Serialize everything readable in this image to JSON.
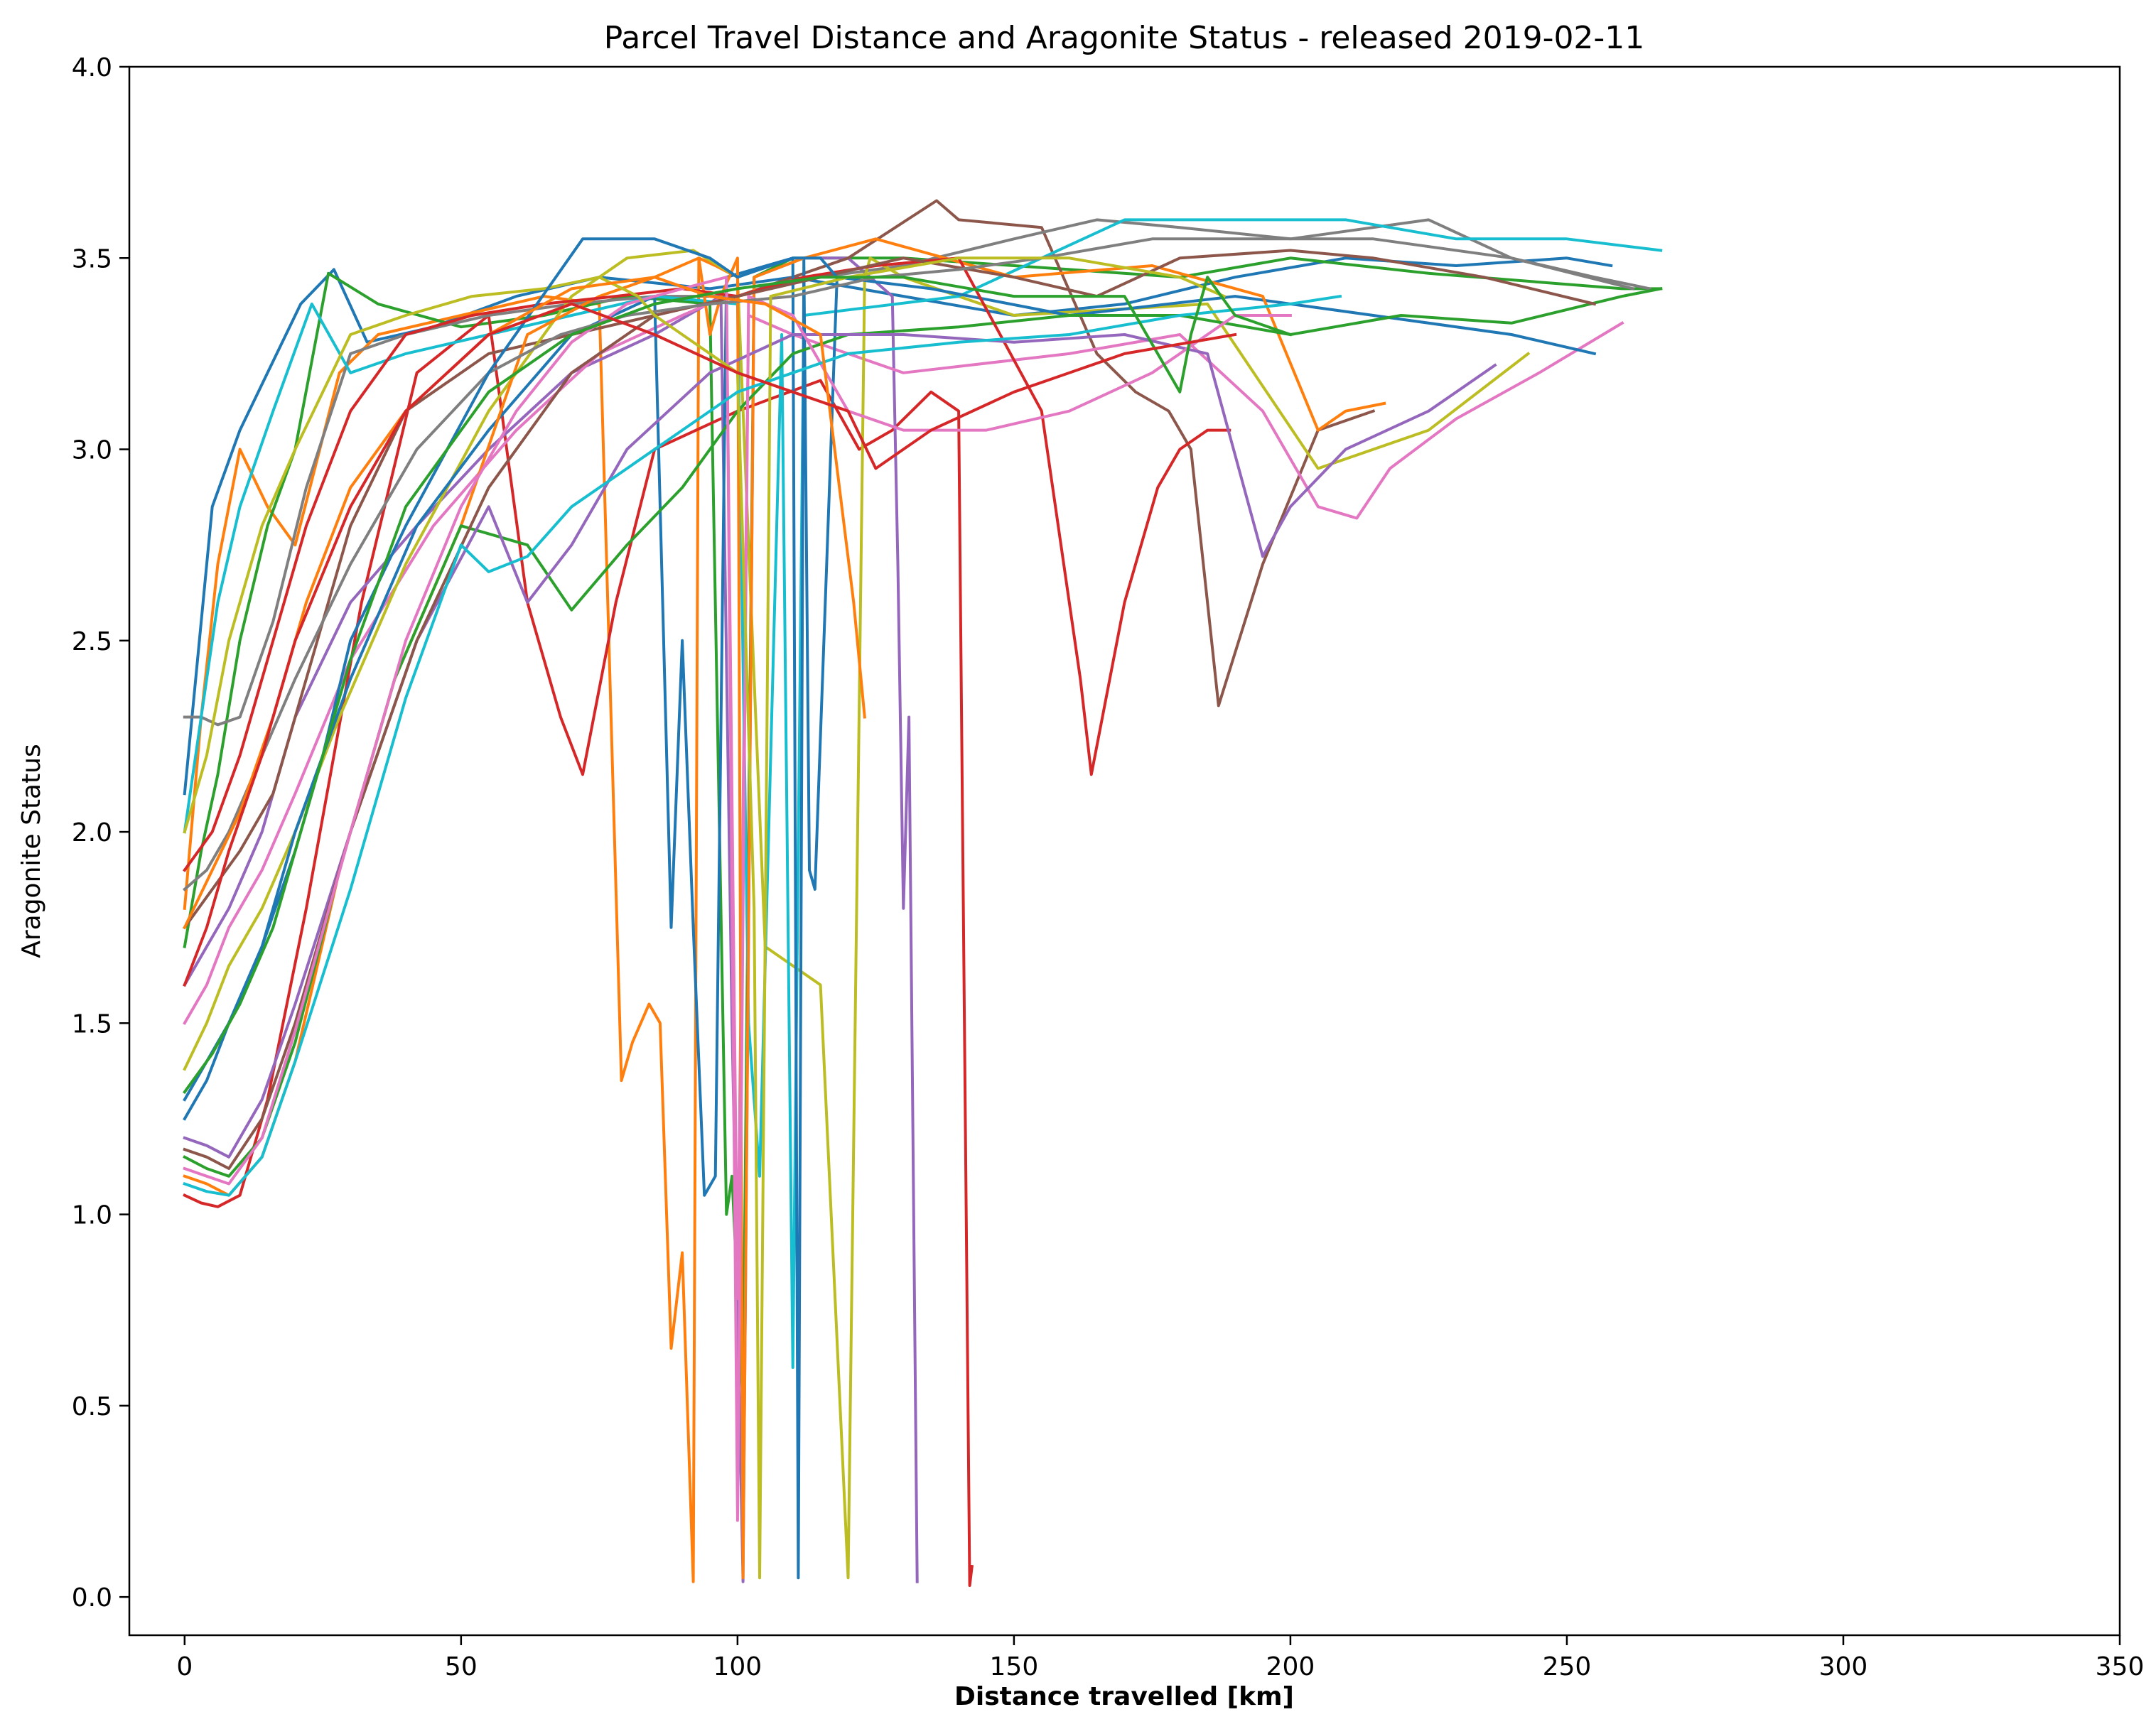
{
  "chart_data": {
    "type": "line",
    "title": "Parcel Travel Distance and Aragonite Status - released 2019-02-11",
    "xlabel": "Distance travelled [km]",
    "ylabel": "Aragonite Status",
    "xlim": [
      -10,
      350
    ],
    "ylim": [
      -0.1,
      4.0
    ],
    "xticks": [
      "0",
      "50",
      "100",
      "150",
      "200",
      "250",
      "300",
      "350"
    ],
    "yticks": [
      "0.0",
      "0.5",
      "1.0",
      "1.5",
      "2.0",
      "2.5",
      "3.0",
      "3.5",
      "4.0"
    ],
    "grid": false,
    "legend": "none",
    "colors": [
      "#1f77b4",
      "#ff7f0e",
      "#2ca02c",
      "#d62728",
      "#9467bd",
      "#8c564b",
      "#e377c2",
      "#7f7f7f",
      "#bcbd22",
      "#17becf"
    ],
    "series": [
      {
        "color": "#1f77b4",
        "x": [
          0,
          2,
          5,
          10,
          15,
          21,
          27,
          33,
          45,
          60,
          75,
          95,
          110,
          130,
          150,
          170,
          190,
          210,
          230,
          250,
          258
        ],
        "y": [
          2.1,
          2.4,
          2.85,
          3.05,
          3.2,
          3.38,
          3.47,
          3.28,
          3.32,
          3.4,
          3.45,
          3.42,
          3.45,
          3.4,
          3.35,
          3.38,
          3.45,
          3.5,
          3.48,
          3.5,
          3.48
        ]
      },
      {
        "color": "#ff7f0e",
        "x": [
          0,
          3,
          6,
          10,
          15,
          20,
          28,
          35,
          50,
          65,
          75,
          79,
          81,
          84,
          86,
          88,
          90,
          92,
          93,
          96,
          100
        ],
        "y": [
          1.8,
          2.3,
          2.7,
          3.0,
          2.85,
          2.75,
          3.2,
          3.3,
          3.35,
          3.4,
          3.38,
          1.35,
          1.45,
          1.55,
          1.5,
          0.65,
          0.9,
          0.04,
          3.5,
          3.48,
          3.45
        ]
      },
      {
        "color": "#2ca02c",
        "x": [
          0,
          3,
          6,
          10,
          15,
          20,
          26,
          35,
          50,
          65,
          80,
          95,
          98,
          99,
          101,
          103,
          110,
          130,
          150,
          180,
          200,
          225,
          260,
          267
        ],
        "y": [
          1.7,
          1.95,
          2.15,
          2.5,
          2.8,
          3.0,
          3.46,
          3.38,
          3.32,
          3.35,
          3.4,
          3.38,
          1.0,
          1.1,
          0.5,
          3.45,
          3.5,
          3.5,
          3.48,
          3.45,
          3.5,
          3.46,
          3.42,
          3.42
        ]
      },
      {
        "color": "#d62728",
        "x": [
          0,
          3,
          6,
          10,
          15,
          22,
          32,
          42,
          55,
          62,
          68,
          72,
          78,
          85,
          100,
          115,
          122,
          128,
          135,
          140,
          142,
          142.4
        ],
        "y": [
          1.05,
          1.03,
          1.02,
          1.05,
          1.3,
          1.8,
          2.6,
          3.2,
          3.35,
          2.6,
          2.3,
          2.15,
          2.6,
          3.0,
          3.1,
          3.18,
          3.0,
          3.05,
          3.15,
          3.1,
          0.03,
          0.08
        ]
      },
      {
        "color": "#9467bd",
        "x": [
          0,
          4,
          8,
          14,
          20,
          30,
          42,
          55,
          70,
          85,
          97,
          99,
          101,
          103,
          112,
          120,
          128,
          129,
          130,
          131,
          132.5
        ],
        "y": [
          1.6,
          1.7,
          1.8,
          2.0,
          2.3,
          2.6,
          2.8,
          3.0,
          3.2,
          3.3,
          3.4,
          1.5,
          0.04,
          3.45,
          3.5,
          3.5,
          3.4,
          2.7,
          1.8,
          2.3,
          0.04
        ]
      },
      {
        "color": "#8c564b",
        "x": [
          0,
          5,
          10,
          16,
          22,
          30,
          40,
          55,
          70,
          85,
          100,
          120,
          136,
          140,
          155,
          165,
          172,
          178,
          182,
          185,
          187,
          195,
          205,
          215
        ],
        "y": [
          1.75,
          1.85,
          1.95,
          2.1,
          2.4,
          2.8,
          3.1,
          3.25,
          3.3,
          3.35,
          3.4,
          3.5,
          3.65,
          3.6,
          3.58,
          3.25,
          3.15,
          3.1,
          3.0,
          2.6,
          2.33,
          2.7,
          3.05,
          3.1
        ]
      },
      {
        "color": "#e377c2",
        "x": [
          0,
          4,
          8,
          14,
          20,
          30,
          45,
          60,
          75,
          90,
          98,
          100,
          102,
          110,
          130,
          160,
          180,
          195,
          205,
          212,
          218,
          230,
          245,
          260
        ],
        "y": [
          1.5,
          1.6,
          1.75,
          1.9,
          2.1,
          2.45,
          2.8,
          3.05,
          3.25,
          3.35,
          3.4,
          0.78,
          3.35,
          3.3,
          3.2,
          3.25,
          3.3,
          3.1,
          2.85,
          2.82,
          2.95,
          3.08,
          3.2,
          3.33
        ]
      },
      {
        "color": "#7f7f7f",
        "x": [
          0,
          3,
          6,
          10,
          16,
          22,
          30,
          40,
          55,
          70,
          85,
          100,
          115,
          130,
          150,
          165,
          180,
          200,
          225,
          240,
          255,
          265
        ],
        "y": [
          2.3,
          2.3,
          2.28,
          2.3,
          2.55,
          2.9,
          3.25,
          3.3,
          3.35,
          3.38,
          3.4,
          3.4,
          3.45,
          3.48,
          3.55,
          3.6,
          3.58,
          3.55,
          3.6,
          3.5,
          3.45,
          3.42
        ]
      },
      {
        "color": "#bcbd22",
        "x": [
          0,
          4,
          8,
          14,
          20,
          28,
          40,
          55,
          70,
          80,
          92,
          100,
          105,
          115,
          120,
          123,
          124,
          130,
          150,
          185,
          205,
          225,
          243
        ],
        "y": [
          1.38,
          1.5,
          1.65,
          1.8,
          2.0,
          2.3,
          2.7,
          3.1,
          3.4,
          3.5,
          3.52,
          3.45,
          1.7,
          1.6,
          0.05,
          3.45,
          3.5,
          3.45,
          3.35,
          3.38,
          2.95,
          3.05,
          3.25
        ]
      },
      {
        "color": "#17becf",
        "x": [
          0,
          3,
          6,
          10,
          16,
          23,
          30,
          40,
          55,
          70,
          85,
          100,
          102,
          104,
          108,
          110,
          112,
          140,
          170,
          190,
          210,
          230,
          250,
          267
        ],
        "y": [
          2.0,
          2.3,
          2.6,
          2.85,
          3.1,
          3.38,
          3.2,
          3.25,
          3.3,
          3.35,
          3.4,
          3.38,
          1.5,
          1.1,
          3.3,
          0.6,
          3.35,
          3.4,
          3.6,
          3.6,
          3.6,
          3.55,
          3.55,
          3.52
        ]
      },
      {
        "color": "#1f77b4",
        "x": [
          0,
          4,
          8,
          14,
          20,
          30,
          42,
          55,
          70,
          85,
          88,
          90,
          92,
          94,
          96,
          98,
          110,
          111,
          112,
          113,
          114,
          118,
          135,
          160,
          190,
          215,
          240,
          255
        ],
        "y": [
          1.25,
          1.35,
          1.5,
          1.7,
          2.0,
          2.4,
          2.8,
          3.05,
          3.3,
          3.4,
          1.75,
          2.5,
          1.75,
          1.05,
          1.1,
          3.45,
          3.5,
          0.05,
          3.5,
          1.9,
          1.85,
          3.45,
          3.42,
          3.35,
          3.4,
          3.35,
          3.3,
          3.25
        ]
      },
      {
        "color": "#ff7f0e",
        "x": [
          0,
          4,
          8,
          14,
          20,
          28,
          38,
          50,
          62,
          75,
          85,
          93,
          95,
          97,
          100,
          101,
          103,
          112,
          125,
          150,
          175,
          195,
          205,
          210,
          217
        ],
        "y": [
          1.1,
          1.08,
          1.05,
          1.15,
          1.4,
          1.9,
          2.4,
          2.8,
          3.3,
          3.4,
          3.45,
          3.5,
          3.3,
          3.4,
          3.5,
          0.05,
          3.45,
          3.5,
          3.55,
          3.45,
          3.48,
          3.4,
          3.05,
          3.1,
          3.12
        ]
      },
      {
        "color": "#2ca02c",
        "x": [
          0,
          4,
          8,
          14,
          20,
          28,
          38,
          50,
          62,
          70,
          80,
          90,
          100,
          110,
          120,
          140,
          160,
          180,
          200,
          220,
          240,
          260,
          267
        ],
        "y": [
          1.15,
          1.12,
          1.1,
          1.2,
          1.45,
          1.9,
          2.4,
          2.8,
          2.75,
          2.58,
          2.75,
          2.9,
          3.1,
          3.25,
          3.3,
          3.32,
          3.35,
          3.35,
          3.3,
          3.35,
          3.33,
          3.4,
          3.42
        ]
      },
      {
        "color": "#d62728",
        "x": [
          0,
          5,
          10,
          16,
          22,
          30,
          40,
          52,
          65,
          78,
          90,
          100,
          112,
          125,
          140,
          155,
          162,
          164,
          170,
          176,
          180,
          185,
          189
        ],
        "y": [
          1.9,
          2.0,
          2.2,
          2.5,
          2.8,
          3.1,
          3.3,
          3.35,
          3.38,
          3.4,
          3.42,
          3.4,
          3.45,
          3.48,
          3.5,
          3.1,
          2.4,
          2.15,
          2.6,
          2.9,
          3.0,
          3.05,
          3.05
        ]
      },
      {
        "color": "#9467bd",
        "x": [
          0,
          4,
          8,
          14,
          20,
          30,
          42,
          55,
          62,
          70,
          80,
          95,
          110,
          130,
          150,
          170,
          185,
          195,
          200,
          210,
          225,
          237
        ],
        "y": [
          1.2,
          1.18,
          1.15,
          1.3,
          1.55,
          2.0,
          2.5,
          2.85,
          2.6,
          2.75,
          3.0,
          3.2,
          3.3,
          3.3,
          3.28,
          3.3,
          3.25,
          2.72,
          2.85,
          3.0,
          3.1,
          3.22
        ]
      },
      {
        "color": "#8c564b",
        "x": [
          0,
          4,
          8,
          14,
          20,
          30,
          42,
          55,
          70,
          85,
          100,
          115,
          130,
          150,
          165,
          180,
          200,
          215,
          235,
          255
        ],
        "y": [
          1.17,
          1.15,
          1.12,
          1.25,
          1.5,
          2.0,
          2.5,
          2.9,
          3.2,
          3.35,
          3.4,
          3.45,
          3.5,
          3.45,
          3.4,
          3.5,
          3.52,
          3.5,
          3.45,
          3.38
        ]
      },
      {
        "color": "#e377c2",
        "x": [
          0,
          4,
          8,
          14,
          20,
          30,
          40,
          50,
          60,
          70,
          80,
          90,
          98,
          100,
          102,
          110,
          120,
          130,
          145,
          160,
          175,
          190,
          200
        ],
        "y": [
          1.12,
          1.1,
          1.08,
          1.2,
          1.48,
          2.0,
          2.5,
          2.85,
          3.1,
          3.28,
          3.38,
          3.42,
          3.45,
          0.2,
          3.4,
          3.35,
          3.1,
          3.05,
          3.05,
          3.1,
          3.2,
          3.35,
          3.35
        ]
      },
      {
        "color": "#7f7f7f",
        "x": [
          0,
          4,
          8,
          14,
          20,
          30,
          42,
          55,
          68,
          80,
          95,
          110,
          125,
          140,
          155,
          175,
          195,
          215,
          240,
          262
        ],
        "y": [
          1.85,
          1.9,
          2.0,
          2.2,
          2.4,
          2.7,
          3.0,
          3.2,
          3.3,
          3.35,
          3.38,
          3.4,
          3.45,
          3.47,
          3.5,
          3.55,
          3.55,
          3.55,
          3.5,
          3.42
        ]
      },
      {
        "color": "#bcbd22",
        "x": [
          0,
          4,
          8,
          14,
          20,
          30,
          40,
          52,
          65,
          75,
          82,
          85,
          90,
          95,
          100,
          103,
          104,
          106,
          120,
          140,
          160,
          180,
          188
        ],
        "y": [
          2.0,
          2.2,
          2.5,
          2.8,
          3.0,
          3.3,
          3.35,
          3.4,
          3.42,
          3.45,
          3.4,
          3.35,
          3.3,
          3.25,
          3.2,
          1.8,
          0.05,
          3.4,
          3.45,
          3.5,
          3.5,
          3.45,
          3.4
        ]
      },
      {
        "color": "#17becf",
        "x": [
          0,
          4,
          8,
          14,
          20,
          30,
          40,
          50,
          55,
          62,
          70,
          80,
          90,
          100,
          110,
          120,
          140,
          160,
          180,
          200,
          209
        ],
        "y": [
          1.08,
          1.06,
          1.05,
          1.15,
          1.4,
          1.85,
          2.35,
          2.75,
          2.68,
          2.72,
          2.85,
          2.95,
          3.05,
          3.15,
          3.2,
          3.25,
          3.28,
          3.3,
          3.35,
          3.38,
          3.4
        ]
      },
      {
        "color": "#1f77b4",
        "x": [
          0,
          4,
          8,
          14,
          20,
          25,
          30,
          40,
          55,
          72,
          85,
          95,
          100,
          110,
          115,
          118
        ],
        "y": [
          1.3,
          1.4,
          1.5,
          1.7,
          1.95,
          2.2,
          2.5,
          2.8,
          3.2,
          3.55,
          3.55,
          3.5,
          3.45,
          3.5,
          3.5,
          3.45
        ]
      },
      {
        "color": "#ff7f0e",
        "x": [
          0,
          5,
          10,
          16,
          22,
          30,
          40,
          55,
          70,
          85,
          95,
          105,
          115,
          121,
          123
        ],
        "y": [
          1.75,
          1.9,
          2.05,
          2.3,
          2.6,
          2.9,
          3.1,
          3.3,
          3.42,
          3.45,
          3.4,
          3.38,
          3.3,
          2.6,
          2.3
        ]
      },
      {
        "color": "#2ca02c",
        "x": [
          0,
          5,
          10,
          16,
          22,
          30,
          40,
          55,
          70,
          85,
          100,
          115,
          130,
          150,
          170,
          178,
          180,
          182,
          185,
          190,
          200
        ],
        "y": [
          1.32,
          1.42,
          1.55,
          1.75,
          2.05,
          2.45,
          2.85,
          3.15,
          3.3,
          3.38,
          3.42,
          3.45,
          3.45,
          3.4,
          3.4,
          3.2,
          3.15,
          3.3,
          3.45,
          3.35,
          3.3
        ]
      },
      {
        "color": "#d62728",
        "x": [
          0,
          4,
          8,
          14,
          20,
          30,
          40,
          55,
          70,
          85,
          100,
          110,
          120,
          125,
          130,
          135,
          150,
          170,
          190
        ],
        "y": [
          1.6,
          1.75,
          1.95,
          2.2,
          2.5,
          2.85,
          3.1,
          3.3,
          3.38,
          3.3,
          3.2,
          3.15,
          3.1,
          2.95,
          3.0,
          3.05,
          3.15,
          3.25,
          3.3
        ]
      }
    ]
  }
}
